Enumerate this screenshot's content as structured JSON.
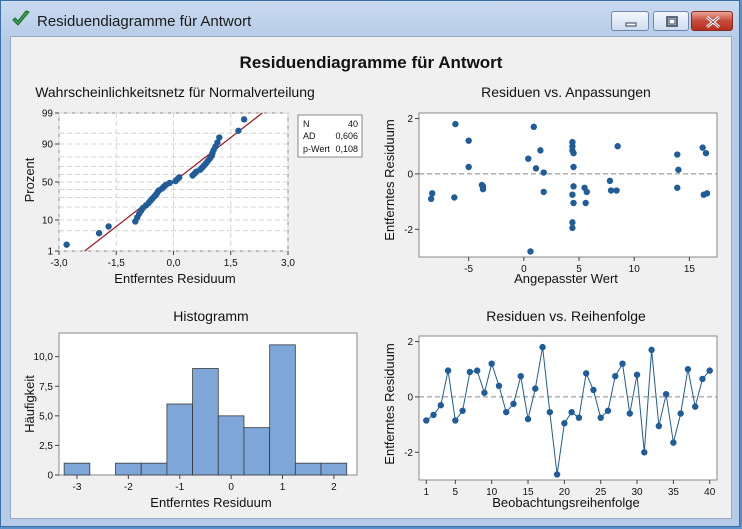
{
  "window": {
    "title": "Residuendiagramme für Antwort"
  },
  "main_title": "Residuendiagramme für Antwort",
  "colors": {
    "point": "#1f5c99",
    "bar": "#7ea6d8",
    "fitline": "#a0141e",
    "grid": "#d4d4d4"
  },
  "chart_data": [
    {
      "id": "probability",
      "type": "scatter",
      "title": "Wahrscheinlichkeitsnetz für Normalverteilung",
      "xlabel": "Entferntes Residuum",
      "ylabel": "Prozent",
      "xlim": [
        -3.0,
        3.0
      ],
      "xticks": [
        -3.0,
        -1.5,
        0.0,
        1.5,
        3.0
      ],
      "xtick_labels": [
        "-3,0",
        "-1,5",
        "0,0",
        "1,5",
        "3,0"
      ],
      "ylim_percent": [
        1,
        99
      ],
      "yticks": [
        1,
        10,
        50,
        90,
        99
      ],
      "yticklines": [
        1,
        5,
        10,
        20,
        30,
        40,
        50,
        60,
        70,
        80,
        90,
        95,
        99
      ],
      "fit_line": {
        "mean": 0,
        "sd": 1
      },
      "x": [
        -2.8,
        -1.95,
        -1.7,
        -1.0,
        -0.95,
        -0.9,
        -0.85,
        -0.8,
        -0.72,
        -0.65,
        -0.6,
        -0.55,
        -0.5,
        -0.45,
        -0.42,
        -0.38,
        -0.3,
        -0.25,
        -0.2,
        -0.1,
        0.05,
        0.1,
        0.15,
        0.5,
        0.55,
        0.6,
        0.7,
        0.75,
        0.8,
        0.85,
        0.9,
        0.95,
        1.0,
        1.02,
        1.05,
        1.1,
        1.15,
        1.2,
        1.7,
        1.85
      ],
      "stats": {
        "rows": [
          {
            "label": "N",
            "value": "40"
          },
          {
            "label": "AD",
            "value": "0,606"
          },
          {
            "label": "p-Wert",
            "value": "0,108"
          }
        ]
      }
    },
    {
      "id": "vs_fits",
      "type": "scatter",
      "title": "Residuen vs. Anpassungen",
      "xlabel": "Angepasster Wert",
      "ylabel": "Entferntes Residuum",
      "xlim": [
        -9.5,
        17.5
      ],
      "ylim": [
        -3.0,
        2.2
      ],
      "xticks": [
        -5,
        0,
        5,
        10,
        15
      ],
      "yticks": [
        -2,
        0,
        2
      ],
      "refline": 0,
      "x": [
        -8.3,
        -8.4,
        -6.2,
        -6.3,
        -5.0,
        -5.0,
        -3.7,
        -3.7,
        -3.8,
        0.4,
        0.6,
        0.9,
        1.1,
        1.5,
        1.8,
        1.8,
        4.4,
        4.4,
        4.4,
        4.5,
        4.5,
        4.5,
        4.4,
        4.5,
        4.4,
        4.4,
        5.5,
        5.6,
        5.7,
        7.8,
        7.9,
        8.4,
        8.5,
        13.9,
        14.0,
        13.9,
        16.2,
        16.5,
        16.6,
        16.3
      ],
      "y": [
        -0.7,
        -0.9,
        1.8,
        -0.85,
        1.2,
        0.25,
        -0.45,
        -0.55,
        -0.4,
        0.55,
        -2.8,
        1.7,
        0.2,
        0.85,
        0.05,
        -0.65,
        1.15,
        1.0,
        0.85,
        0.75,
        0.25,
        -0.45,
        -0.75,
        -1.05,
        -1.75,
        -1.95,
        -0.5,
        -1.05,
        -0.65,
        -0.25,
        -0.6,
        -0.6,
        1.0,
        0.7,
        0.15,
        -0.5,
        0.95,
        0.75,
        -0.7,
        -0.75
      ]
    },
    {
      "id": "histogram",
      "type": "bar",
      "title": "Histogramm",
      "xlabel": "Entferntes Residuum",
      "ylabel": "Häufigkeit",
      "bin_width": 0.5,
      "bin_centers": [
        -3.0,
        -2.5,
        -2.0,
        -1.5,
        -1.0,
        -0.5,
        0.0,
        0.5,
        1.0,
        1.5,
        2.0
      ],
      "values": [
        1,
        0,
        1,
        1,
        6,
        9,
        5,
        4,
        11,
        1,
        1
      ],
      "xlim": [
        -3.35,
        2.45
      ],
      "ylim": [
        0,
        12.0
      ],
      "xticks": [
        -3,
        -2,
        -1,
        0,
        1,
        2
      ],
      "yticks": [
        0,
        2.5,
        5.0,
        7.5,
        10.0
      ],
      "ytick_labels": [
        "0",
        "2,5",
        "5,0",
        "7,5",
        "10,0"
      ]
    },
    {
      "id": "vs_order",
      "type": "line",
      "title": "Residuen vs. Reihenfolge",
      "xlabel": "Beobachtungsreihenfolge",
      "ylabel": "Entferntes Residuum",
      "xlim": [
        0,
        41
      ],
      "ylim": [
        -3.0,
        2.2
      ],
      "xticks": [
        1,
        5,
        10,
        15,
        20,
        25,
        30,
        35,
        40
      ],
      "yticks": [
        -2,
        0,
        2
      ],
      "refline": 0,
      "x": [
        1,
        2,
        3,
        4,
        5,
        6,
        7,
        8,
        9,
        10,
        11,
        12,
        13,
        14,
        15,
        16,
        17,
        18,
        19,
        20,
        21,
        22,
        23,
        24,
        25,
        26,
        27,
        28,
        29,
        30,
        31,
        32,
        33,
        34,
        35,
        36,
        37,
        38,
        39,
        40
      ],
      "y": [
        -0.85,
        -0.65,
        -0.3,
        0.95,
        -0.85,
        -0.5,
        0.9,
        0.95,
        0.15,
        1.2,
        0.4,
        -0.55,
        -0.25,
        0.75,
        -0.8,
        0.3,
        1.8,
        -0.55,
        -2.8,
        -0.95,
        -0.55,
        -0.75,
        0.85,
        0.25,
        -0.75,
        -0.5,
        0.75,
        1.2,
        -0.6,
        0.8,
        -2.0,
        1.7,
        -1.05,
        0.1,
        -1.65,
        -0.6,
        1.0,
        -0.35,
        0.65,
        0.95
      ]
    }
  ]
}
